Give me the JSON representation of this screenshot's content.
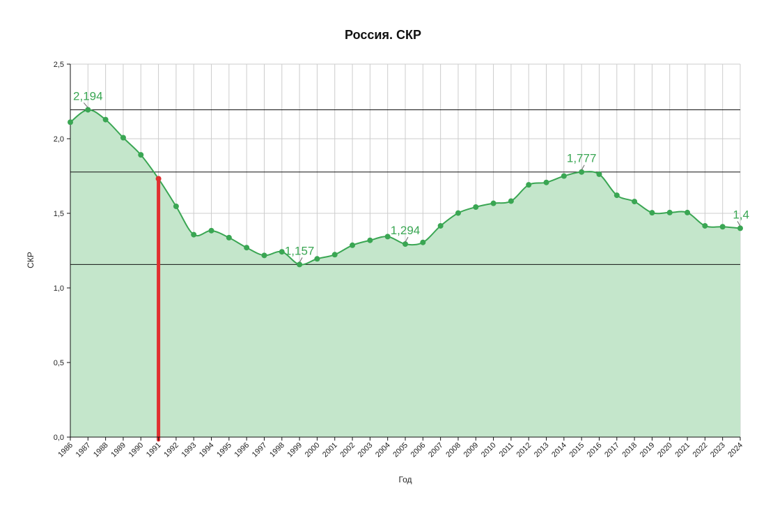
{
  "chart_data": {
    "type": "area",
    "title": "Россия. СКР",
    "xlabel": "Год",
    "ylabel": "СКР",
    "ylim": [
      0,
      2.5
    ],
    "yticks": [
      0.0,
      0.5,
      1.0,
      1.5,
      2.0,
      2.5
    ],
    "ytick_labels": [
      "0,0",
      "0,5",
      "1,0",
      "1,5",
      "2,0",
      "2,5"
    ],
    "x": [
      1986,
      1987,
      1988,
      1989,
      1990,
      1991,
      1992,
      1993,
      1994,
      1995,
      1996,
      1997,
      1998,
      1999,
      2000,
      2001,
      2002,
      2003,
      2004,
      2005,
      2006,
      2007,
      2008,
      2009,
      2010,
      2011,
      2012,
      2013,
      2014,
      2015,
      2016,
      2017,
      2018,
      2019,
      2020,
      2021,
      2022,
      2023,
      2024
    ],
    "x_labels": [
      "1986",
      "1987",
      "1988",
      "1989",
      "1990",
      "1991",
      "1992",
      "1993",
      "1994",
      "1995",
      "1996",
      "1997",
      "1998",
      "1999",
      "2000",
      "2001",
      "2002",
      "2003",
      "2004",
      "2005",
      "2006",
      "2007",
      "2008",
      "2009",
      "2010",
      "2011",
      "2012",
      "2013",
      "2014",
      "2015",
      "2016",
      "2017",
      "2018",
      "2019",
      "2020",
      "2021",
      "2022",
      "2023",
      "2024"
    ],
    "series": [
      {
        "values": [
          2.111,
          2.194,
          2.128,
          2.007,
          1.892,
          1.732,
          1.547,
          1.357,
          1.384,
          1.337,
          1.27,
          1.218,
          1.242,
          1.157,
          1.195,
          1.223,
          1.286,
          1.319,
          1.344,
          1.294,
          1.305,
          1.416,
          1.502,
          1.542,
          1.567,
          1.582,
          1.691,
          1.707,
          1.75,
          1.777,
          1.762,
          1.621,
          1.579,
          1.504,
          1.505,
          1.505,
          1.416,
          1.41,
          1.4
        ],
        "color": "#3aa653",
        "fill": "#c4e6cb"
      }
    ],
    "annotations": [
      {
        "x": 1987,
        "y": 2.194,
        "text": "2,194"
      },
      {
        "x": 1999,
        "y": 1.157,
        "text": "1,157"
      },
      {
        "x": 2005,
        "y": 1.294,
        "text": "1,294"
      },
      {
        "x": 2015,
        "y": 1.777,
        "text": "1,777"
      },
      {
        "x": 2024,
        "y": 1.4,
        "text": "1,4"
      }
    ],
    "reference_lines_y": [
      2.194,
      1.777,
      1.157
    ],
    "highlight_x": 1991,
    "highlight_color": "#e03030",
    "grid": true,
    "legend": "none"
  }
}
